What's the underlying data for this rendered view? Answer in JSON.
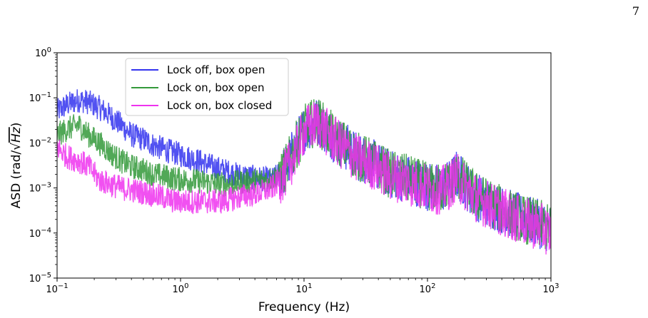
{
  "page": {
    "number": "7"
  },
  "chart_data": {
    "type": "line",
    "xscale": "log",
    "yscale": "log",
    "xlim": [
      0.1,
      1000
    ],
    "ylim": [
      1e-05,
      1
    ],
    "xlabel": "Frequency (Hz)",
    "ylabel": {
      "prefix": "ASD (rad/",
      "sqrt_term": "Hz",
      "suffix": ")"
    },
    "x_ticks": [
      {
        "value": 0.1,
        "base": "10",
        "exp": "−1"
      },
      {
        "value": 1,
        "base": "10",
        "exp": "0"
      },
      {
        "value": 10,
        "base": "10",
        "exp": "1"
      },
      {
        "value": 100,
        "base": "10",
        "exp": "2"
      },
      {
        "value": 1000,
        "base": "10",
        "exp": "3"
      }
    ],
    "y_ticks": [
      {
        "value": 1e-05,
        "base": "10",
        "exp": "−5"
      },
      {
        "value": 0.0001,
        "base": "10",
        "exp": "−4"
      },
      {
        "value": 0.001,
        "base": "10",
        "exp": "−3"
      },
      {
        "value": 0.01,
        "base": "10",
        "exp": "−2"
      },
      {
        "value": 0.1,
        "base": "10",
        "exp": "−1"
      },
      {
        "value": 1,
        "base": "10",
        "exp": "0"
      }
    ],
    "legend_position": "top-left",
    "grid": false,
    "series": [
      {
        "name": "Lock off, box open",
        "color": "#3333ee",
        "x": [
          0.1,
          0.12,
          0.15,
          0.18,
          0.22,
          0.27,
          0.33,
          0.4,
          0.5,
          0.6,
          0.75,
          0.9,
          1.1,
          1.4,
          1.8,
          2.2,
          2.8,
          3.5,
          4.5,
          5.5,
          7,
          8.5,
          10,
          11,
          13,
          15,
          18,
          22,
          27,
          33,
          40,
          50,
          60,
          75,
          90,
          110,
          130,
          150,
          170,
          190,
          220,
          260,
          300,
          350,
          420,
          500,
          600,
          700,
          850,
          1000
        ],
        "y": [
          0.05,
          0.07,
          0.09,
          0.08,
          0.06,
          0.04,
          0.025,
          0.015,
          0.012,
          0.009,
          0.007,
          0.006,
          0.005,
          0.004,
          0.003,
          0.0025,
          0.002,
          0.0018,
          0.0016,
          0.0015,
          0.0025,
          0.008,
          0.02,
          0.025,
          0.03,
          0.02,
          0.012,
          0.008,
          0.005,
          0.004,
          0.003,
          0.002,
          0.0018,
          0.0015,
          0.0012,
          0.001,
          0.001,
          0.0012,
          0.002,
          0.0015,
          0.0009,
          0.0006,
          0.0005,
          0.0004,
          0.0003,
          0.00025,
          0.0002,
          0.00018,
          0.00015,
          0.00012
        ]
      },
      {
        "name": "Lock on, box open",
        "color": "#33993a",
        "x": [
          0.1,
          0.12,
          0.15,
          0.18,
          0.22,
          0.27,
          0.33,
          0.4,
          0.5,
          0.6,
          0.75,
          0.9,
          1.1,
          1.4,
          1.8,
          2.2,
          2.8,
          3.5,
          4.5,
          5.5,
          7,
          8.5,
          10,
          11,
          13,
          15,
          18,
          22,
          27,
          33,
          40,
          50,
          60,
          75,
          90,
          110,
          130,
          150,
          170,
          190,
          220,
          260,
          300,
          350,
          420,
          500,
          600,
          700,
          850,
          1000
        ],
        "y": [
          0.015,
          0.02,
          0.025,
          0.015,
          0.01,
          0.006,
          0.004,
          0.003,
          0.0025,
          0.002,
          0.0018,
          0.0016,
          0.0015,
          0.0014,
          0.0013,
          0.0012,
          0.0013,
          0.0014,
          0.0015,
          0.0016,
          0.0025,
          0.008,
          0.02,
          0.025,
          0.03,
          0.02,
          0.012,
          0.008,
          0.005,
          0.004,
          0.003,
          0.002,
          0.0018,
          0.0015,
          0.0012,
          0.001,
          0.001,
          0.0012,
          0.002,
          0.0015,
          0.0009,
          0.0006,
          0.0005,
          0.0004,
          0.0003,
          0.00025,
          0.0002,
          0.00018,
          0.00015,
          0.00012
        ]
      },
      {
        "name": "Lock on, box closed",
        "color": "#ee33ee",
        "x": [
          0.1,
          0.12,
          0.15,
          0.18,
          0.22,
          0.27,
          0.33,
          0.4,
          0.5,
          0.6,
          0.75,
          0.9,
          1.1,
          1.4,
          1.8,
          2.2,
          2.8,
          3.5,
          4.5,
          5.5,
          7,
          8.5,
          10,
          11,
          13,
          15,
          18,
          22,
          27,
          33,
          40,
          50,
          60,
          75,
          90,
          110,
          130,
          150,
          170,
          190,
          220,
          260,
          300,
          350,
          420,
          500,
          600,
          700,
          850,
          1000
        ],
        "y": [
          0.008,
          0.005,
          0.004,
          0.003,
          0.0015,
          0.0012,
          0.001,
          0.0009,
          0.0008,
          0.0007,
          0.0006,
          0.0005,
          0.0005,
          0.0005,
          0.0005,
          0.0005,
          0.0006,
          0.0007,
          0.0008,
          0.001,
          0.002,
          0.006,
          0.018,
          0.022,
          0.028,
          0.018,
          0.011,
          0.007,
          0.0045,
          0.0035,
          0.0027,
          0.0018,
          0.0016,
          0.0013,
          0.0011,
          0.0009,
          0.0009,
          0.0011,
          0.0018,
          0.0013,
          0.0008,
          0.00055,
          0.00045,
          0.00035,
          0.00028,
          0.00022,
          0.00018,
          0.00016,
          0.00013,
          0.0001
        ]
      }
    ]
  }
}
